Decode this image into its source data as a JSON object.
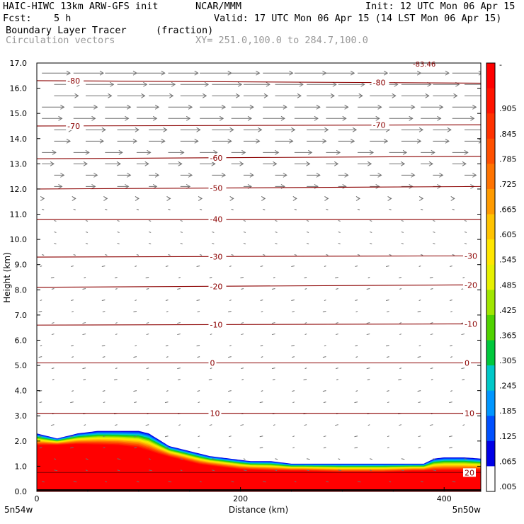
{
  "header": {
    "model": "HAIC-HIWC 13km ARW-GFS init",
    "org": "NCAR/MMM",
    "init": "Init: 12 UTC Mon 06 Apr 15",
    "fcst_label": "Fcst:",
    "fcst_value": "5 h",
    "valid": "Valid: 17 UTC Mon 06 Apr 15 (14 LST Mon 06 Apr 15)",
    "field": "Boundary Layer Tracer",
    "units": "(fraction)",
    "vectors": "Circulation vectors",
    "xy": "XY= 251.0,100.0 to 284.7,100.0"
  },
  "colors": {
    "fill_top": "#ff0000",
    "contour": "#8b0000",
    "vector": "#707070"
  },
  "chart_data": {
    "type": "heatmap",
    "ylabel": "Height (km)",
    "xlabel": "Distance (km)",
    "ylim": [
      0,
      17
    ],
    "xlim": [
      0,
      436
    ],
    "yticks": [
      "0.0",
      "1.0",
      "2.0",
      "3.0",
      "4.0",
      "5.0",
      "6.0",
      "7.0",
      "8.0",
      "9.0",
      "10.0",
      "11.0",
      "12.0",
      "13.0",
      "14.0",
      "15.0",
      "16.0",
      "17.0"
    ],
    "xticks": [
      {
        "value": 0,
        "label": "0"
      },
      {
        "value": 200,
        "label": "200"
      },
      {
        "value": 400,
        "label": "400"
      }
    ],
    "x_endpoints": {
      "left": "5n54w",
      "right": "5n50w"
    },
    "colorbar": {
      "labels": [
        "-",
        ".905",
        ".845",
        ".785",
        ".725",
        ".665",
        ".605",
        ".545",
        ".485",
        ".425",
        ".365",
        ".305",
        ".245",
        ".185",
        ".125",
        ".065",
        ".005"
      ],
      "colors": [
        "#ff0000",
        "#ff1400",
        "#ff3200",
        "#ff5000",
        "#ff7300",
        "#ff9b00",
        "#ffc300",
        "#ffe600",
        "#e6f000",
        "#a0e600",
        "#50d200",
        "#00c83c",
        "#00c8c8",
        "#0096ff",
        "#0050ff",
        "#0000e6",
        "#ffffff"
      ]
    },
    "boundary_layer_top": {
      "x": [
        0,
        20,
        40,
        60,
        80,
        100,
        110,
        130,
        150,
        170,
        190,
        210,
        230,
        250,
        270,
        300,
        330,
        360,
        380,
        390,
        400,
        420,
        436
      ],
      "y": [
        2.3,
        2.1,
        2.3,
        2.4,
        2.4,
        2.4,
        2.3,
        1.8,
        1.6,
        1.4,
        1.3,
        1.2,
        1.2,
        1.1,
        1.1,
        1.1,
        1.1,
        1.1,
        1.1,
        1.3,
        1.35,
        1.35,
        1.3
      ]
    },
    "red_core_top": {
      "x": [
        0,
        40,
        80,
        100,
        120,
        140,
        160,
        180,
        200,
        230,
        260,
        300,
        340,
        370,
        400,
        436
      ],
      "y": [
        1.8,
        1.85,
        1.8,
        1.7,
        1.45,
        1.25,
        1.05,
        0.95,
        0.85,
        0.8,
        0.8,
        0.75,
        0.75,
        0.8,
        0.8,
        0.8
      ]
    },
    "temperature_contours": [
      {
        "label": "-80",
        "y_left": 16.3,
        "y_right": 16.2,
        "label_x": [
          30,
          330
        ]
      },
      {
        "label": "-70",
        "y_left": 14.5,
        "y_right": 14.55,
        "label_x": [
          30,
          330
        ]
      },
      {
        "label": "-60",
        "y_left": 13.2,
        "y_right": 13.3,
        "label_x": [
          170
        ]
      },
      {
        "label": "-50",
        "y_left": 12.0,
        "y_right": 12.1,
        "label_x": [
          170
        ]
      },
      {
        "label": "-40",
        "y_left": 10.8,
        "y_right": 10.8,
        "label_x": [
          170
        ]
      },
      {
        "label": "-30",
        "y_left": 9.3,
        "y_right": 9.35,
        "label_x": [
          170,
          420
        ]
      },
      {
        "label": "-20",
        "y_left": 8.1,
        "y_right": 8.2,
        "label_x": [
          170,
          420
        ]
      },
      {
        "label": "-10",
        "y_left": 6.6,
        "y_right": 6.65,
        "label_x": [
          170,
          420
        ]
      },
      {
        "label": "0",
        "y_left": 5.1,
        "y_right": 5.1,
        "label_x": [
          170,
          420
        ]
      },
      {
        "label": "10",
        "y_left": 3.1,
        "y_right": 3.1,
        "label_x": [
          170,
          420
        ]
      },
      {
        "label": "20",
        "y_left": 0.75,
        "y_right": 0.75,
        "label_x": [
          420
        ]
      }
    ],
    "top_label": "-83.46",
    "grid": false,
    "vectors": "circulation vectors: strong westerly above 12 km, weak below"
  }
}
